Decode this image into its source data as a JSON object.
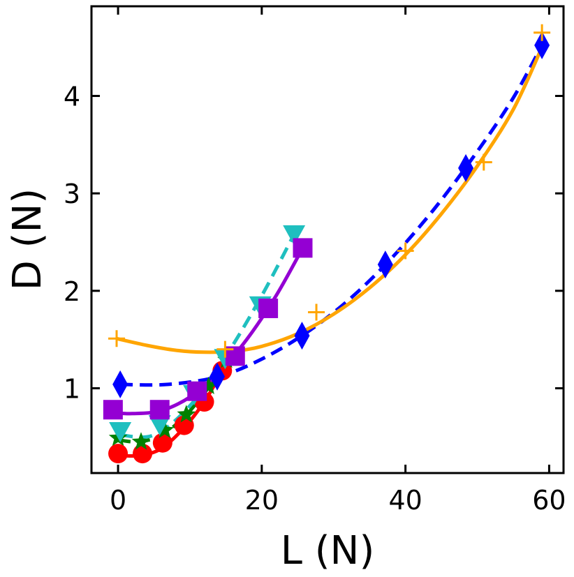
{
  "chart_data": {
    "type": "scatter",
    "xlabel": "L (N)",
    "ylabel": "D (N)",
    "xlim": [
      -3.7,
      62.0
    ],
    "ylim": [
      0.13,
      4.92
    ],
    "xticks": [
      0,
      20,
      40,
      60
    ],
    "yticks": [
      1,
      2,
      3,
      4
    ],
    "grid": false,
    "legend": "none",
    "series": [
      {
        "name": "circle-red",
        "marker": "circle",
        "color": "#ff0000",
        "line": "solid",
        "points": [
          [
            0,
            0.33
          ],
          [
            3.4,
            0.33
          ],
          [
            6.2,
            0.44
          ],
          [
            9.2,
            0.62
          ],
          [
            12.0,
            0.86
          ],
          [
            14.5,
            1.18
          ]
        ],
        "fit": [
          [
            0,
            0.31
          ],
          [
            3,
            0.31
          ],
          [
            6,
            0.38
          ],
          [
            9,
            0.58
          ],
          [
            12,
            0.86
          ],
          [
            14.5,
            1.18
          ]
        ]
      },
      {
        "name": "star-green",
        "marker": "star",
        "color": "#008000",
        "line": "dashed",
        "points": [
          [
            0,
            0.49
          ],
          [
            3.2,
            0.45
          ],
          [
            6.5,
            0.57
          ],
          [
            9.5,
            0.73
          ],
          [
            12.6,
            1.02
          ],
          [
            15.1,
            1.29
          ]
        ],
        "fit": [
          [
            0,
            0.47
          ],
          [
            3,
            0.45
          ],
          [
            6,
            0.52
          ],
          [
            9,
            0.69
          ],
          [
            12,
            0.95
          ],
          [
            15.1,
            1.29
          ]
        ]
      },
      {
        "name": "triangle-cyan",
        "marker": "triangle-down",
        "color": "#1fbfbf",
        "line": "dashed",
        "points": [
          [
            0.3,
            0.56
          ],
          [
            5.8,
            0.63
          ],
          [
            10.6,
            0.94
          ],
          [
            14.9,
            1.31
          ],
          [
            19.8,
            1.85
          ],
          [
            24.5,
            2.58
          ]
        ],
        "fit": [
          [
            0.3,
            0.52
          ],
          [
            5,
            0.52
          ],
          [
            10,
            0.82
          ],
          [
            15,
            1.33
          ],
          [
            20,
            1.95
          ],
          [
            24.5,
            2.58
          ]
        ]
      },
      {
        "name": "square-purple",
        "marker": "square",
        "color": "#9400d3",
        "line": "solid",
        "points": [
          [
            -0.7,
            0.78
          ],
          [
            5.8,
            0.78
          ],
          [
            11.0,
            0.97
          ],
          [
            16.3,
            1.33
          ],
          [
            20.9,
            1.82
          ],
          [
            25.7,
            2.44
          ]
        ],
        "fit": [
          [
            -0.7,
            0.75
          ],
          [
            2,
            0.74
          ],
          [
            6,
            0.77
          ],
          [
            10,
            0.91
          ],
          [
            14,
            1.16
          ],
          [
            18,
            1.51
          ],
          [
            22,
            1.95
          ],
          [
            25.7,
            2.44
          ]
        ]
      },
      {
        "name": "diamond-blue",
        "marker": "diamond",
        "color": "#0000ff",
        "line": "dashed",
        "points": [
          [
            0.3,
            1.04
          ],
          [
            13.8,
            1.12
          ],
          [
            25.6,
            1.54
          ],
          [
            37.2,
            2.27
          ],
          [
            48.4,
            3.26
          ],
          [
            59.0,
            4.52
          ]
        ],
        "fit": [
          [
            0.3,
            1.04
          ],
          [
            7,
            1.04
          ],
          [
            14,
            1.12
          ],
          [
            20,
            1.3
          ],
          [
            26,
            1.56
          ],
          [
            32,
            1.9
          ],
          [
            38,
            2.33
          ],
          [
            44,
            2.84
          ],
          [
            50,
            3.43
          ],
          [
            55,
            3.98
          ],
          [
            59,
            4.52
          ]
        ]
      },
      {
        "name": "plus-orange",
        "marker": "plus",
        "color": "#ffa500",
        "line": "solid",
        "points": [
          [
            -0.2,
            1.51
          ],
          [
            14.9,
            1.4
          ],
          [
            27.6,
            1.78
          ],
          [
            40.0,
            2.41
          ],
          [
            50.9,
            3.32
          ],
          [
            59.0,
            4.65
          ]
        ],
        "fit": [
          [
            -0.2,
            1.51
          ],
          [
            4,
            1.44
          ],
          [
            8,
            1.39
          ],
          [
            12,
            1.37
          ],
          [
            16,
            1.38
          ],
          [
            20,
            1.43
          ],
          [
            25,
            1.56
          ],
          [
            30,
            1.76
          ],
          [
            35,
            2.03
          ],
          [
            40,
            2.37
          ],
          [
            45,
            2.79
          ],
          [
            50,
            3.28
          ],
          [
            55,
            3.86
          ],
          [
            59,
            4.5
          ]
        ]
      }
    ]
  }
}
